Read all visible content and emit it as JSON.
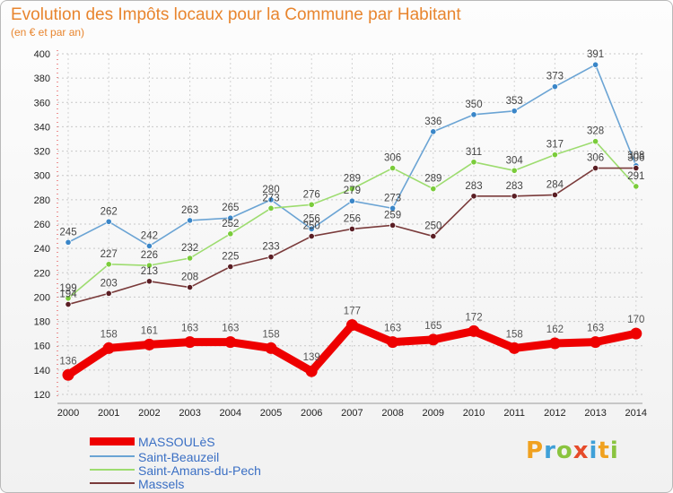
{
  "title": "Evolution des Impôts locaux pour la Commune par Habitant",
  "subtitle": "(en € et par an)",
  "logo": {
    "text": "Proxiti",
    "letters": [
      "P",
      "r",
      "o",
      "x",
      "i",
      "t",
      "i"
    ],
    "colors": [
      "#f0a11f",
      "#3fa0d8",
      "#8ac43f",
      "#e64b2a",
      "#3fa0d8",
      "#f0a11f",
      "#8ac43f"
    ]
  },
  "chart_data": {
    "type": "line",
    "title": "Evolution des Impôts locaux pour la Commune par Habitant",
    "subtitle": "(en € et par an)",
    "x": [
      "2000",
      "2001",
      "2002",
      "2003",
      "2004",
      "2005",
      "2006",
      "2007",
      "2008",
      "2009",
      "2010",
      "2011",
      "2012",
      "2013",
      "2014"
    ],
    "y_ticks": [
      "120",
      "140",
      "160",
      "180",
      "200",
      "220",
      "240",
      "260",
      "280",
      "300",
      "320",
      "340",
      "360",
      "380",
      "400"
    ],
    "ylim": [
      120,
      400
    ],
    "grid": true,
    "legend_position": "bottom-left",
    "series": [
      {
        "name": "Saint-Beauzeil",
        "color": "#6ba4d4",
        "marker": "#3a86c8",
        "values": [
          245,
          262,
          242,
          263,
          265,
          280,
          256,
          279,
          273,
          336,
          350,
          353,
          373,
          391,
          308
        ],
        "labels": [
          "245",
          "262",
          "242",
          "263",
          "265",
          "280",
          "256",
          "279",
          "273",
          "336",
          "350",
          "353",
          "373",
          "391",
          "308"
        ]
      },
      {
        "name": "Saint-Amans-du-Pech",
        "color": "#9ddc6f",
        "marker": "#7acc3a",
        "values": [
          199,
          227,
          226,
          232,
          252,
          273,
          276,
          289,
          306,
          289,
          311,
          304,
          317,
          328,
          291
        ],
        "labels": [
          "199",
          "227",
          "226",
          "232",
          "252",
          "273",
          "276",
          "289",
          "306",
          "289",
          "311",
          "304",
          "317",
          "328",
          "291"
        ]
      },
      {
        "name": "Massels",
        "color": "#7a3b3b",
        "marker": "#5a1e24",
        "values": [
          194,
          203,
          213,
          208,
          225,
          233,
          250,
          256,
          259,
          250,
          283,
          283,
          284,
          306,
          306
        ],
        "labels": [
          "194",
          "203",
          "213",
          "208",
          "225",
          "233",
          "250",
          "256",
          "259",
          "250",
          "283",
          "283",
          "284",
          "306",
          "306"
        ]
      },
      {
        "name": "MASSOULèS",
        "color": "#ee0000",
        "marker": "#ee0000",
        "values": [
          136,
          158,
          161,
          163,
          163,
          158,
          139,
          177,
          163,
          165,
          172,
          158,
          162,
          163,
          170
        ],
        "labels": [
          "136",
          "158",
          "161",
          "163",
          "163",
          "158",
          "139",
          "177",
          "163",
          "165",
          "172",
          "158",
          "162",
          "163",
          "170"
        ]
      }
    ]
  },
  "legend": [
    {
      "name": "MASSOULèS",
      "color": "#ee0000",
      "thickness": 9
    },
    {
      "name": "Saint-Beauzeil",
      "color": "#6ba4d4",
      "thickness": 2
    },
    {
      "name": "Saint-Amans-du-Pech",
      "color": "#9ddc6f",
      "thickness": 2
    },
    {
      "name": "Massels",
      "color": "#7a3b3b",
      "thickness": 2
    }
  ]
}
